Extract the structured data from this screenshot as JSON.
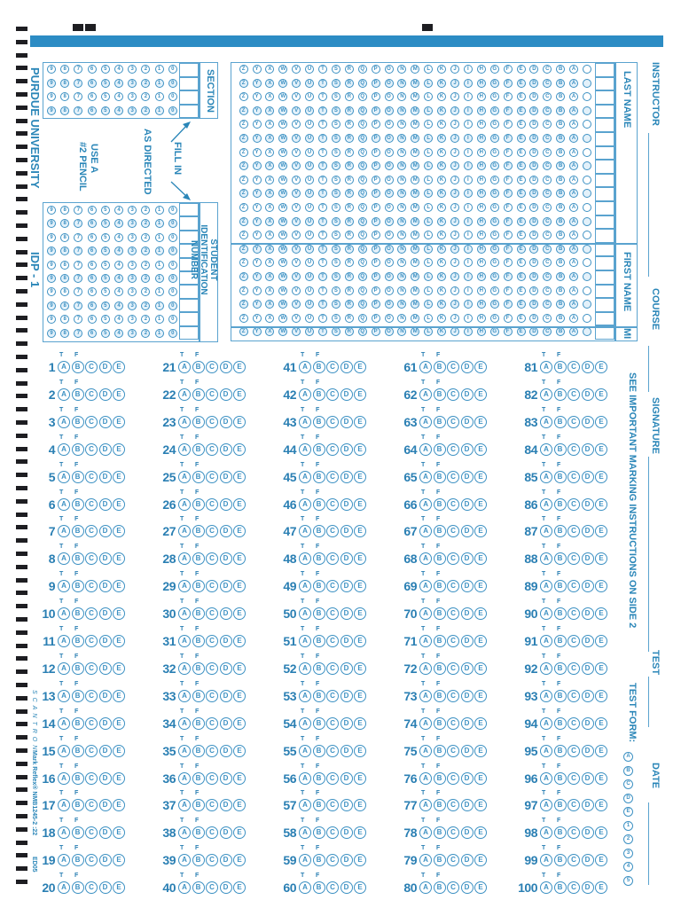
{
  "form": {
    "institution": "PURDUE UNIVERSITY",
    "form_id": "IDP - 1",
    "pencil_note": [
      "USE A",
      "#2 PENCIL"
    ],
    "fill_note": [
      "FILL IN",
      "AS DIRECTED"
    ],
    "instructions_note": "SEE IMPORTANT MARKING INSTRUCTIONS ON SIDE 2",
    "vendor_logo": "SCANTRON",
    "vendor_code": "Mark Reflex® NMB1245-2 :22",
    "edition": "ED05",
    "accent_color": "#2c8cc4"
  },
  "header_fields": [
    {
      "label": "INSTRUCTOR"
    },
    {
      "label": "COURSE"
    },
    {
      "label": "SIGNATURE"
    },
    {
      "label": "TEST"
    },
    {
      "label": "DATE"
    }
  ],
  "section": {
    "label": "SECTION",
    "columns": 4,
    "digits": [
      "0",
      "1",
      "2",
      "3",
      "4",
      "5",
      "6",
      "7",
      "8",
      "9"
    ]
  },
  "student_id": {
    "label": "STUDENT IDENTIFICATION NUMBER",
    "columns": 10,
    "digits": [
      "0",
      "1",
      "2",
      "3",
      "4",
      "5",
      "6",
      "7",
      "8",
      "9"
    ]
  },
  "name_grid": {
    "last_name_label": "LAST NAME",
    "first_name_label": "FIRST NAME",
    "mi_label": "MI",
    "last_name_columns": 13,
    "first_name_columns": 6,
    "mi_columns": 1,
    "letters": [
      "",
      "A",
      "B",
      "C",
      "D",
      "E",
      "F",
      "G",
      "H",
      "I",
      "J",
      "K",
      "L",
      "M",
      "N",
      "O",
      "P",
      "Q",
      "R",
      "S",
      "T",
      "U",
      "V",
      "W",
      "X",
      "Y",
      "Z"
    ]
  },
  "test_form": {
    "label": "TEST FORM:",
    "options": [
      "A",
      "B",
      "C",
      "D",
      "E",
      "1",
      "2",
      "3",
      "4",
      "5"
    ]
  },
  "answers": {
    "true_label": "T",
    "false_label": "F",
    "choices": [
      "A",
      "B",
      "C",
      "D",
      "E"
    ],
    "question_count": 100,
    "rows_per_column": 20,
    "columns": 5
  }
}
